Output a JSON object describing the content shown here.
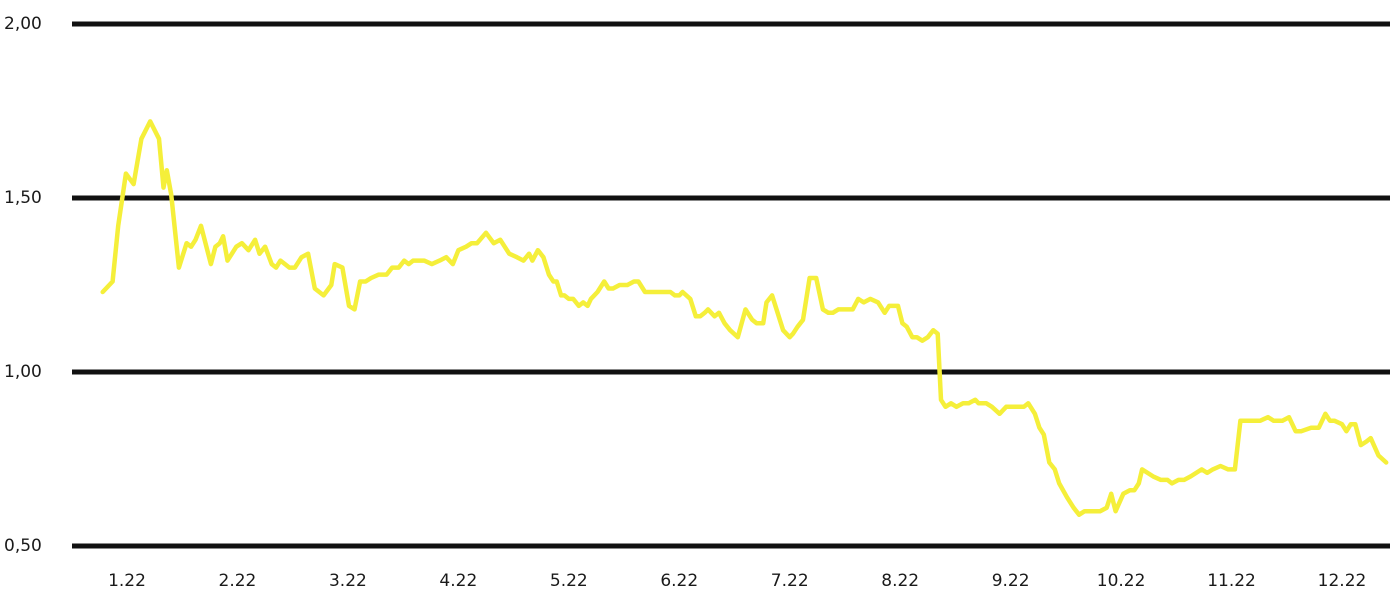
{
  "chart_data": {
    "type": "line",
    "title": "",
    "xlabel": "",
    "ylabel": "",
    "grid": true,
    "ylim": [
      0.5,
      2.0
    ],
    "xlim": [
      0.2,
      12.4
    ],
    "y_ticks": [
      {
        "value": 2.0,
        "label": "2,00"
      },
      {
        "value": 1.5,
        "label": "1,50"
      },
      {
        "value": 1.0,
        "label": "1,00"
      },
      {
        "value": 0.5,
        "label": "0,50"
      }
    ],
    "x_ticks": [
      {
        "value": 1,
        "label": "1.22"
      },
      {
        "value": 2,
        "label": "2.22"
      },
      {
        "value": 3,
        "label": "3.22"
      },
      {
        "value": 4,
        "label": "4.22"
      },
      {
        "value": 5,
        "label": "5.22"
      },
      {
        "value": 6,
        "label": "6.22"
      },
      {
        "value": 7,
        "label": "7.22"
      },
      {
        "value": 8,
        "label": "8.22"
      },
      {
        "value": 9,
        "label": "9.22"
      },
      {
        "value": 10,
        "label": "10.22"
      },
      {
        "value": 11,
        "label": "11.22"
      },
      {
        "value": 12,
        "label": "12.22"
      }
    ],
    "series": [
      {
        "color": "#f5ef3a",
        "x": [
          0.78,
          0.87,
          0.92,
          0.99,
          1.06,
          1.13,
          1.21,
          1.29,
          1.33,
          1.36,
          1.4,
          1.47,
          1.54,
          1.58,
          1.62,
          1.67,
          1.76,
          1.8,
          1.84,
          1.87,
          1.91,
          1.95,
          1.99,
          2.04,
          2.1,
          2.16,
          2.2,
          2.25,
          2.31,
          2.35,
          2.39,
          2.43,
          2.47,
          2.52,
          2.58,
          2.64,
          2.7,
          2.78,
          2.85,
          2.88,
          2.95,
          3.01,
          3.06,
          3.11,
          3.16,
          3.21,
          3.28,
          3.35,
          3.4,
          3.46,
          3.51,
          3.55,
          3.59,
          3.63,
          3.69,
          3.76,
          3.83,
          3.89,
          3.95,
          4.0,
          4.07,
          4.12,
          4.17,
          4.25,
          4.32,
          4.38,
          4.46,
          4.53,
          4.59,
          4.64,
          4.67,
          4.72,
          4.77,
          4.82,
          4.86,
          4.89,
          4.93,
          4.96,
          5.0,
          5.04,
          5.09,
          5.13,
          5.17,
          5.2,
          5.26,
          5.32,
          5.36,
          5.4,
          5.46,
          5.53,
          5.59,
          5.63,
          5.69,
          5.76,
          5.82,
          5.87,
          5.92,
          5.96,
          5.98,
          6.0,
          6.03,
          6.1,
          6.15,
          6.19,
          6.23,
          6.26,
          6.32,
          6.36,
          6.41,
          6.46,
          6.53,
          6.6,
          6.66,
          6.7,
          6.76,
          6.79,
          6.84,
          6.89,
          6.94,
          7.0,
          7.03,
          7.07,
          7.12,
          7.18,
          7.24,
          7.3,
          7.35,
          7.39,
          7.44,
          7.48,
          7.53,
          7.57,
          7.62,
          7.67,
          7.73,
          7.8,
          7.86,
          7.9,
          7.95,
          7.98,
          8.02,
          8.06,
          8.11,
          8.15,
          8.2,
          8.25,
          8.3,
          8.34,
          8.37,
          8.41,
          8.46,
          8.51,
          8.57,
          8.62,
          8.68,
          8.71,
          8.73,
          8.78,
          8.83,
          8.9,
          8.96,
          9.01,
          9.07,
          9.12,
          9.16,
          9.22,
          9.26,
          9.3,
          9.35,
          9.4,
          9.44,
          9.51,
          9.57,
          9.62,
          9.67,
          9.76,
          9.81,
          9.87,
          9.91,
          9.95,
          10.02,
          10.08,
          10.12,
          10.16,
          10.19,
          10.24,
          10.29,
          10.36,
          10.42,
          10.46,
          10.52,
          10.57,
          10.63,
          10.68,
          10.73,
          10.78,
          10.83,
          10.9,
          10.97,
          11.03,
          11.08,
          11.15,
          11.21,
          11.26,
          11.33,
          11.38,
          11.46,
          11.52,
          11.58,
          11.63,
          11.72,
          11.79,
          11.85,
          11.89,
          11.93,
          12.0,
          12.04,
          12.08,
          12.12,
          12.17,
          12.22,
          12.26,
          12.33,
          12.4
        ],
        "values": [
          1.23,
          1.26,
          1.42,
          1.57,
          1.54,
          1.67,
          1.72,
          1.67,
          1.53,
          1.58,
          1.51,
          1.3,
          1.37,
          1.36,
          1.38,
          1.42,
          1.31,
          1.36,
          1.37,
          1.39,
          1.32,
          1.34,
          1.36,
          1.37,
          1.35,
          1.38,
          1.34,
          1.36,
          1.31,
          1.3,
          1.32,
          1.31,
          1.3,
          1.3,
          1.33,
          1.34,
          1.24,
          1.22,
          1.25,
          1.31,
          1.3,
          1.19,
          1.18,
          1.26,
          1.26,
          1.27,
          1.28,
          1.28,
          1.3,
          1.3,
          1.32,
          1.31,
          1.32,
          1.32,
          1.32,
          1.31,
          1.32,
          1.33,
          1.31,
          1.35,
          1.36,
          1.37,
          1.37,
          1.4,
          1.37,
          1.38,
          1.34,
          1.33,
          1.32,
          1.34,
          1.32,
          1.35,
          1.33,
          1.28,
          1.26,
          1.26,
          1.22,
          1.22,
          1.21,
          1.21,
          1.19,
          1.2,
          1.19,
          1.21,
          1.23,
          1.26,
          1.24,
          1.24,
          1.25,
          1.25,
          1.26,
          1.26,
          1.23,
          1.23,
          1.23,
          1.23,
          1.23,
          1.22,
          1.22,
          1.22,
          1.23,
          1.21,
          1.16,
          1.16,
          1.17,
          1.18,
          1.16,
          1.17,
          1.14,
          1.12,
          1.1,
          1.18,
          1.15,
          1.14,
          1.14,
          1.2,
          1.22,
          1.17,
          1.12,
          1.1,
          1.11,
          1.13,
          1.15,
          1.27,
          1.27,
          1.18,
          1.17,
          1.17,
          1.18,
          1.18,
          1.18,
          1.18,
          1.21,
          1.2,
          1.21,
          1.2,
          1.17,
          1.19,
          1.19,
          1.19,
          1.14,
          1.13,
          1.1,
          1.1,
          1.09,
          1.1,
          1.12,
          1.11,
          0.92,
          0.9,
          0.91,
          0.9,
          0.91,
          0.91,
          0.92,
          0.91,
          0.91,
          0.91,
          0.9,
          0.88,
          0.9,
          0.9,
          0.9,
          0.9,
          0.91,
          0.88,
          0.84,
          0.82,
          0.74,
          0.72,
          0.68,
          0.64,
          0.61,
          0.59,
          0.6,
          0.6,
          0.6,
          0.61,
          0.65,
          0.6,
          0.65,
          0.66,
          0.66,
          0.68,
          0.72,
          0.71,
          0.7,
          0.69,
          0.69,
          0.68,
          0.69,
          0.69,
          0.7,
          0.71,
          0.72,
          0.71,
          0.72,
          0.73,
          0.72,
          0.72,
          0.86,
          0.86,
          0.86,
          0.86,
          0.87,
          0.86,
          0.86,
          0.87,
          0.83,
          0.83,
          0.84,
          0.84,
          0.88,
          0.86,
          0.86,
          0.85,
          0.83,
          0.85,
          0.85,
          0.79,
          0.8,
          0.81,
          0.76,
          0.74
        ]
      }
    ]
  }
}
